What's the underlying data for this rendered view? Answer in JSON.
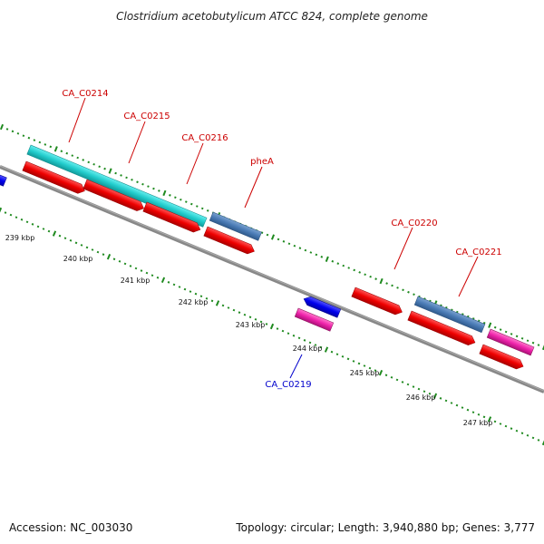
{
  "title": "Clostridium acetobutylicum ATCC 824, complete genome",
  "footer": {
    "accession": "Accession: NC_003030",
    "summary": "Topology: circular; Length: 3,940,880 bp; Genes: 3,777"
  },
  "colors": {
    "backbone": "#808080",
    "dots": "#1f8a1f",
    "cds_forward": "#ee1111",
    "cds_reverse": "#0000ee",
    "rrna": "#22cccc",
    "trna": "#4a7bb5",
    "misc": "#ee22aa",
    "label_forward": "#cc0000",
    "label_reverse": "#0000cc"
  },
  "ruler": [
    {
      "label": "239 kbp"
    },
    {
      "label": "240 kbp"
    },
    {
      "label": "241 kbp"
    },
    {
      "label": "242 kbp"
    },
    {
      "label": "243 kbp"
    },
    {
      "label": "244 kbp"
    },
    {
      "label": "245 kbp"
    },
    {
      "label": "246 kbp"
    },
    {
      "label": "247 kbp"
    }
  ],
  "gene_labels": [
    {
      "text": "CA_C0214",
      "strand": "forward"
    },
    {
      "text": "CA_C0215",
      "strand": "forward"
    },
    {
      "text": "CA_C0216",
      "strand": "forward"
    },
    {
      "text": "pheA",
      "strand": "forward"
    },
    {
      "text": "CA_C0220",
      "strand": "forward"
    },
    {
      "text": "CA_C0221",
      "strand": "forward"
    },
    {
      "text": "CA_C0219",
      "strand": "reverse"
    }
  ]
}
